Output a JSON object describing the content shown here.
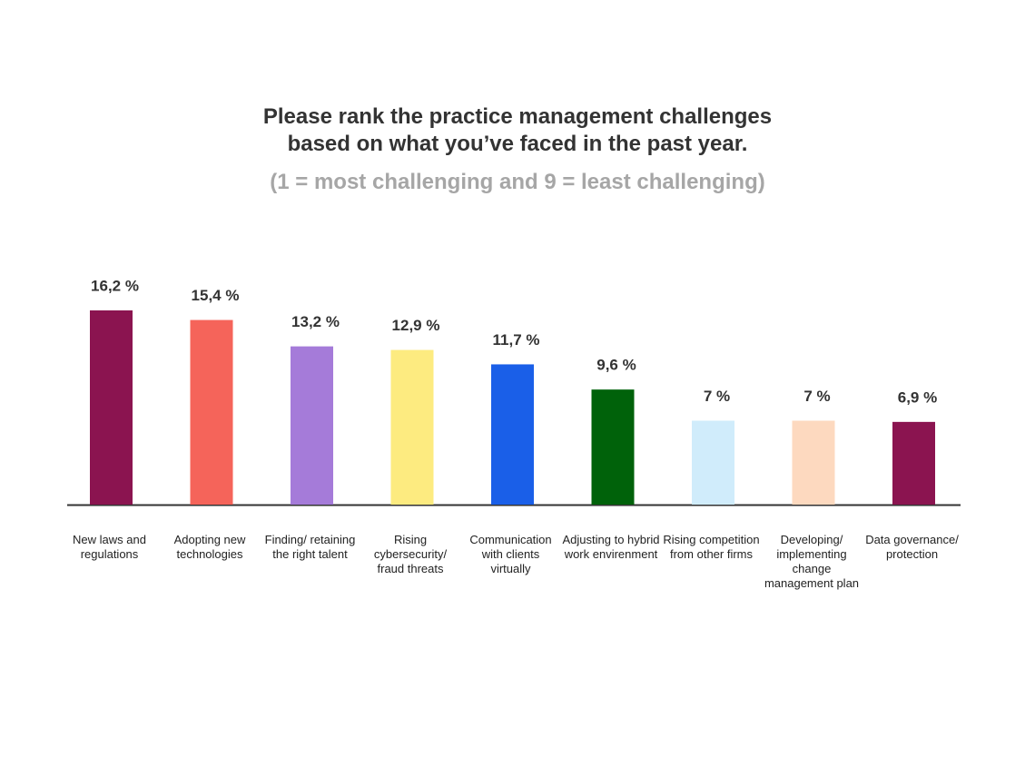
{
  "chart_data": {
    "type": "bar",
    "title": "Please rank the practice management challenges based on what you’ve faced in the past year.",
    "subtitle": "(1 = most challenging and 9 = least challenging)",
    "categories": [
      "New laws and regulations",
      "Adopting new technologies",
      "Finding/ retaining the right talent",
      "Rising cybersecurity/ fraud threats",
      "Communication with clients virtually",
      "Adjusting to hybrid work envirenment",
      "Rising competition from other firms",
      "Developing/ implementing change management plan",
      "Data governance/ protection"
    ],
    "values": [
      16.2,
      15.4,
      13.2,
      12.9,
      11.7,
      9.6,
      7,
      7,
      6.9
    ],
    "value_labels": [
      "16,2 %",
      "15,4 %",
      "13,2 %",
      "12,9 %",
      "11,7 %",
      "9,6 %",
      "7 %",
      "7 %",
      "6,9 %"
    ],
    "colors": [
      "#8b1450",
      "#f5645a",
      "#a57bd9",
      "#fdeb80",
      "#1a5fe8",
      "#00620a",
      "#d0ecfb",
      "#fdd9bf",
      "#8b1450"
    ]
  }
}
